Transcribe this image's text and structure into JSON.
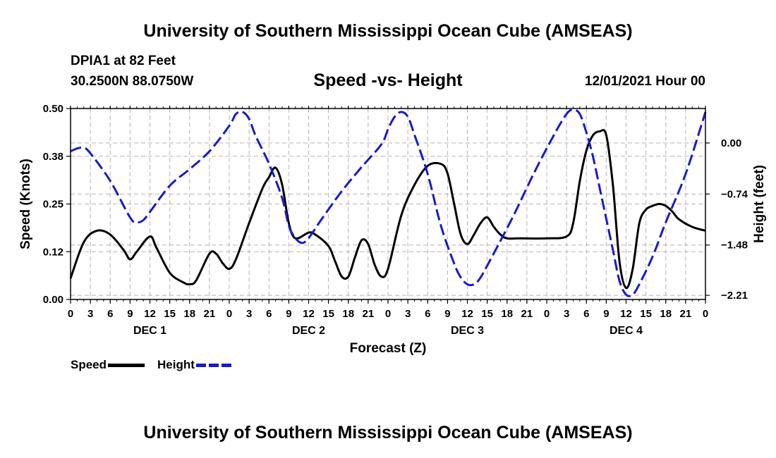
{
  "header": {
    "title": "University of Southern Mississippi Ocean Cube (AMSEAS)",
    "station": "DPIA1 at 82 Feet",
    "coords": "30.2500N  88.0750W",
    "subtitle": "Speed -vs- Height",
    "datetime": "12/01/2021 Hour 00"
  },
  "footer": {
    "title": "University of Southern Mississippi Ocean Cube (AMSEAS)"
  },
  "legend": {
    "speed_label": "Speed",
    "height_label": "Height"
  },
  "colors": {
    "speed": "#000000",
    "height": "#1a1ac8",
    "grid": "#b4b4b4"
  },
  "chart_data": {
    "type": "line",
    "title": "Speed -vs- Height",
    "xlabel": "Forecast (Z)",
    "ylabel_left": "Speed (Knots)",
    "ylabel_right": "Height (feet)",
    "xlim": [
      0,
      96
    ],
    "ylim_left": [
      0,
      0.5
    ],
    "ylim_right": [
      -2.27,
      0.5
    ],
    "x_tick_labels": [
      "0",
      "3",
      "6",
      "9",
      "12",
      "15",
      "18",
      "21",
      "0",
      "3",
      "6",
      "9",
      "12",
      "15",
      "18",
      "21",
      "0",
      "3",
      "6",
      "9",
      "12",
      "15",
      "18",
      "21",
      "0",
      "3",
      "6",
      "9",
      "12",
      "15",
      "18",
      "21",
      "0"
    ],
    "left_ticks": [
      {
        "value": 0.0,
        "label": "0.00"
      },
      {
        "value": 0.125,
        "label": "0.12"
      },
      {
        "value": 0.25,
        "label": "0.25"
      },
      {
        "value": 0.375,
        "label": "0.38"
      },
      {
        "value": 0.5,
        "label": "0.50"
      }
    ],
    "right_ticks": [
      {
        "value": 0.0,
        "label": "0.00"
      },
      {
        "value": -0.74,
        "label": "−0.74"
      },
      {
        "value": -1.48,
        "label": "−1.48"
      },
      {
        "value": -2.21,
        "label": "−2.21"
      }
    ],
    "day_labels": [
      {
        "label": "DEC 1",
        "x": 12
      },
      {
        "label": "DEC 2",
        "x": 36
      },
      {
        "label": "DEC 3",
        "x": 60
      },
      {
        "label": "DEC 4",
        "x": 84
      }
    ],
    "series": [
      {
        "name": "Speed",
        "axis": "left",
        "style": "solid",
        "points": [
          [
            0,
            0.055
          ],
          [
            2,
            0.15
          ],
          [
            4,
            0.18
          ],
          [
            6,
            0.17
          ],
          [
            8,
            0.13
          ],
          [
            9,
            0.105
          ],
          [
            10,
            0.125
          ],
          [
            12,
            0.165
          ],
          [
            13,
            0.135
          ],
          [
            15,
            0.07
          ],
          [
            17,
            0.045
          ],
          [
            18,
            0.04
          ],
          [
            19,
            0.05
          ],
          [
            21,
            0.12
          ],
          [
            22,
            0.12
          ],
          [
            23,
            0.095
          ],
          [
            24,
            0.08
          ],
          [
            25,
            0.105
          ],
          [
            27,
            0.2
          ],
          [
            29,
            0.29
          ],
          [
            30,
            0.32
          ],
          [
            31,
            0.345
          ],
          [
            32,
            0.3
          ],
          [
            33,
            0.2
          ],
          [
            34,
            0.16
          ],
          [
            36,
            0.175
          ],
          [
            37,
            0.17
          ],
          [
            39,
            0.14
          ],
          [
            40,
            0.1
          ],
          [
            41,
            0.06
          ],
          [
            42,
            0.06
          ],
          [
            43,
            0.11
          ],
          [
            44,
            0.155
          ],
          [
            45,
            0.145
          ],
          [
            46,
            0.09
          ],
          [
            47,
            0.06
          ],
          [
            48,
            0.08
          ],
          [
            50,
            0.22
          ],
          [
            52,
            0.3
          ],
          [
            54,
            0.35
          ],
          [
            56,
            0.355
          ],
          [
            57,
            0.33
          ],
          [
            58,
            0.25
          ],
          [
            59,
            0.17
          ],
          [
            60,
            0.145
          ],
          [
            61,
            0.17
          ],
          [
            62,
            0.2
          ],
          [
            63,
            0.215
          ],
          [
            64,
            0.19
          ],
          [
            65,
            0.17
          ],
          [
            66,
            0.16
          ],
          [
            68,
            0.16
          ],
          [
            72,
            0.16
          ],
          [
            75,
            0.165
          ],
          [
            76,
            0.2
          ],
          [
            77,
            0.31
          ],
          [
            78,
            0.39
          ],
          [
            79,
            0.43
          ],
          [
            80,
            0.44
          ],
          [
            81,
            0.43
          ],
          [
            82,
            0.3
          ],
          [
            83,
            0.1
          ],
          [
            84,
            0.03
          ],
          [
            85,
            0.08
          ],
          [
            86,
            0.2
          ],
          [
            87,
            0.235
          ],
          [
            88,
            0.245
          ],
          [
            89,
            0.25
          ],
          [
            90,
            0.245
          ],
          [
            91,
            0.23
          ],
          [
            92,
            0.21
          ],
          [
            94,
            0.19
          ],
          [
            96,
            0.18
          ]
        ]
      },
      {
        "name": "Height",
        "axis": "right",
        "style": "dashed",
        "points": [
          [
            0,
            -0.12
          ],
          [
            1,
            -0.08
          ],
          [
            2,
            -0.07
          ],
          [
            3,
            -0.15
          ],
          [
            6,
            -0.55
          ],
          [
            9,
            -1.08
          ],
          [
            10,
            -1.15
          ],
          [
            11,
            -1.12
          ],
          [
            12,
            -1.0
          ],
          [
            15,
            -0.62
          ],
          [
            18,
            -0.38
          ],
          [
            21,
            -0.12
          ],
          [
            24,
            0.25
          ],
          [
            25,
            0.42
          ],
          [
            26,
            0.45
          ],
          [
            27,
            0.35
          ],
          [
            28,
            0.1
          ],
          [
            30,
            -0.3
          ],
          [
            32,
            -0.8
          ],
          [
            33,
            -1.2
          ],
          [
            34,
            -1.38
          ],
          [
            35,
            -1.45
          ],
          [
            36,
            -1.38
          ],
          [
            38,
            -1.1
          ],
          [
            41,
            -0.7
          ],
          [
            44,
            -0.35
          ],
          [
            47,
            -0.02
          ],
          [
            48,
            0.2
          ],
          [
            49,
            0.38
          ],
          [
            50,
            0.45
          ],
          [
            51,
            0.38
          ],
          [
            52,
            0.12
          ],
          [
            54,
            -0.45
          ],
          [
            56,
            -1.2
          ],
          [
            58,
            -1.75
          ],
          [
            59,
            -1.95
          ],
          [
            60,
            -2.05
          ],
          [
            61,
            -2.05
          ],
          [
            62,
            -1.95
          ],
          [
            64,
            -1.6
          ],
          [
            67,
            -1.05
          ],
          [
            70,
            -0.45
          ],
          [
            73,
            0.1
          ],
          [
            75,
            0.42
          ],
          [
            76,
            0.48
          ],
          [
            77,
            0.42
          ],
          [
            78,
            0.15
          ],
          [
            79,
            -0.2
          ],
          [
            80,
            -0.65
          ],
          [
            82,
            -1.55
          ],
          [
            83,
            -2.0
          ],
          [
            84,
            -2.2
          ],
          [
            85,
            -2.2
          ],
          [
            86,
            -2.05
          ],
          [
            88,
            -1.65
          ],
          [
            90,
            -1.15
          ],
          [
            93,
            -0.45
          ],
          [
            96,
            0.45
          ]
        ]
      }
    ]
  }
}
